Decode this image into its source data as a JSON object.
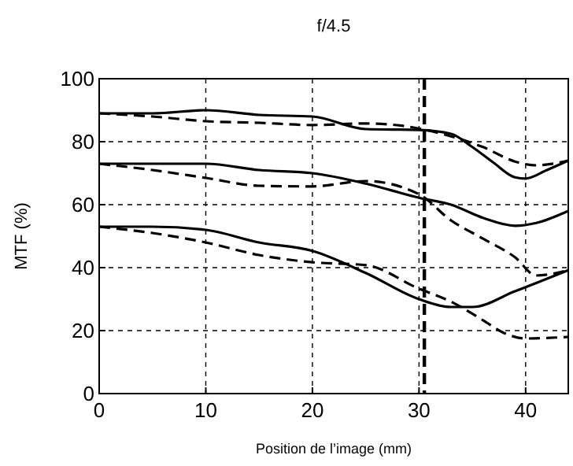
{
  "chart_data": {
    "type": "line",
    "title": "f/4.5",
    "xlabel": "Position de l’image (mm)",
    "ylabel": "MTF (%)",
    "xlim": [
      0,
      44
    ],
    "ylim": [
      0,
      100
    ],
    "xticks": [
      0,
      10,
      20,
      30,
      40
    ],
    "yticks": [
      0,
      20,
      40,
      60,
      80,
      100
    ],
    "grid": true,
    "series": [
      {
        "color": "#000000",
        "line_style": "solid",
        "x": [
          0,
          5,
          10,
          15,
          20,
          25,
          30,
          33,
          35,
          37,
          39,
          40,
          42,
          44
        ],
        "values": [
          89,
          89,
          90,
          88.5,
          88,
          84,
          83.7,
          82.5,
          78.3,
          73.3,
          68.7,
          68.3,
          71,
          74
        ]
      },
      {
        "color": "#000000",
        "line_style": "dashed",
        "x": [
          0,
          5,
          10,
          15,
          20,
          25,
          30,
          33,
          36,
          39,
          41,
          44
        ],
        "values": [
          89,
          88,
          86.5,
          86,
          85.3,
          85.8,
          84.2,
          81.7,
          78.3,
          73.7,
          72.5,
          74
        ]
      },
      {
        "color": "#000000",
        "line_style": "solid",
        "x": [
          0,
          5,
          10,
          15,
          20,
          25,
          30,
          33,
          36,
          39,
          41,
          44
        ],
        "values": [
          73,
          73,
          73,
          71,
          70,
          66.7,
          62.2,
          60,
          55.8,
          53.3,
          54.2,
          58
        ]
      },
      {
        "color": "#000000",
        "line_style": "dashed",
        "x": [
          0,
          5,
          10,
          15,
          20,
          25,
          30,
          33,
          36,
          39,
          41,
          44
        ],
        "values": [
          73,
          71,
          68.5,
          66,
          65.8,
          67.5,
          63.3,
          55,
          49.2,
          43.3,
          37.5,
          39.2
        ]
      },
      {
        "color": "#000000",
        "line_style": "solid",
        "x": [
          0,
          5,
          10,
          15,
          20,
          25,
          30,
          33,
          35,
          39,
          44
        ],
        "values": [
          53,
          53,
          52,
          48,
          45.3,
          38.3,
          30,
          27.5,
          27.5,
          32.5,
          39.2
        ]
      },
      {
        "color": "#000000",
        "line_style": "dashed",
        "x": [
          0,
          5,
          10,
          15,
          20,
          25,
          30,
          33,
          36,
          38,
          40,
          44
        ],
        "values": [
          53,
          51,
          48,
          44,
          41.7,
          40.8,
          33.3,
          29.2,
          23.3,
          19.2,
          17.5,
          18
        ]
      }
    ],
    "ref_lines": [
      {
        "axis": "x",
        "value": 30.5,
        "color": "#000000",
        "line_style": "dashed"
      }
    ]
  }
}
